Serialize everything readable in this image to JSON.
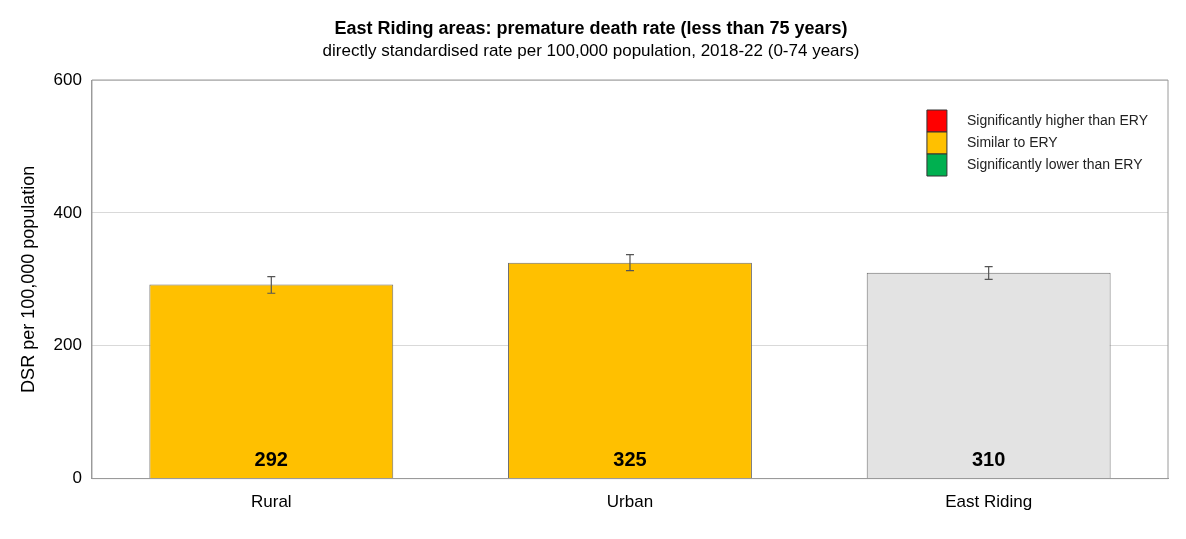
{
  "chart_data": {
    "type": "bar",
    "title": "East Riding areas: premature death rate (less than 75 years)",
    "subtitle": "directly standardised rate per 100,000 population, 2018-22 (0-74 years)",
    "ylabel": "DSR per 100,000 population",
    "categories": [
      "Rural",
      "Urban",
      "East Riding"
    ],
    "series": [
      {
        "name": "Significantly higher than ERY",
        "color": "#ff0000",
        "values": [
          null,
          null,
          null
        ]
      },
      {
        "name": "Similar to ERY",
        "color": "#ffc000",
        "values": [
          292,
          325,
          null
        ],
        "errors": [
          [
            279,
            304
          ],
          [
            313,
            337
          ],
          null
        ]
      },
      {
        "name": "Significantly lower than ERY",
        "color": "#00b050",
        "values": [
          null,
          null,
          null
        ]
      },
      {
        "color": "#e3e3e3",
        "values": [
          null,
          null,
          310
        ],
        "errors": [
          null,
          null,
          [
            300,
            319
          ]
        ]
      }
    ],
    "ylim": [
      0,
      600
    ],
    "yticks": [
      0,
      200,
      400,
      600
    ],
    "grid": "y",
    "legend": "top right",
    "data_labels": true
  }
}
